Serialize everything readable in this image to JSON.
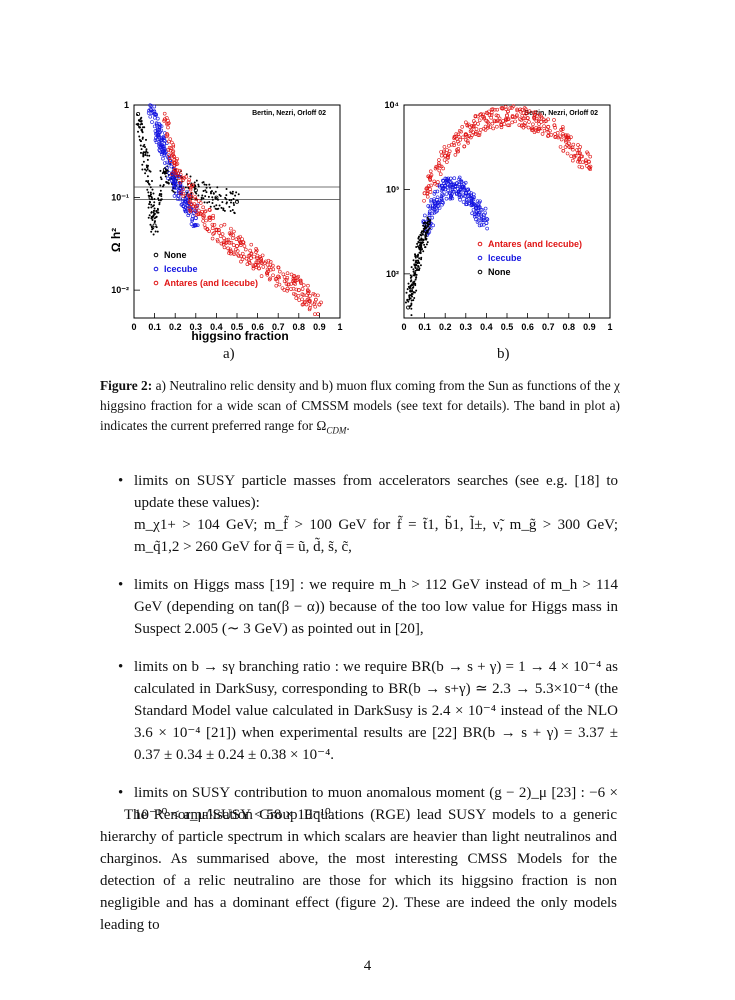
{
  "figure": {
    "plot_a": {
      "credit": "Bertin, Nezri, Orloff 02",
      "ylabel": "Ω  h²",
      "ylabel_sub": "χ",
      "xlabel": "higgsino fraction",
      "x_ticks": [
        "0",
        "0.1",
        "0.2",
        "0.3",
        "0.4",
        "0.5",
        "0.6",
        "0.7",
        "0.8",
        "0.9",
        "1"
      ],
      "y_ticks": [
        "1",
        "10⁻¹",
        "10⁻²"
      ],
      "legend": [
        {
          "label": "None",
          "color": "#000000"
        },
        {
          "label": "Icecube",
          "color": "#1515e0"
        },
        {
          "label": "Antares (and Icecube)",
          "color": "#e01515"
        }
      ],
      "band_label_color": "#444444"
    },
    "plot_b": {
      "credit": "Bertin, Nezri, Orloff 02",
      "x_ticks": [
        "0",
        "0.1",
        "0.2",
        "0.3",
        "0.4",
        "0.5",
        "0.6",
        "0.7",
        "0.8",
        "0.9",
        "1"
      ],
      "y_ticks": [
        "10⁴",
        "10³",
        "10²"
      ],
      "legend": [
        {
          "label": "Antares (and Icecube)",
          "color": "#e01515"
        },
        {
          "label": "Icecube",
          "color": "#1515e0"
        },
        {
          "label": "None",
          "color": "#000000"
        }
      ]
    },
    "sublabel_a": "a)",
    "sublabel_b": "b)"
  },
  "chart_data": [
    {
      "type": "scatter",
      "title": "",
      "xlabel": "higgsino fraction",
      "ylabel": "Ω_χ h²",
      "xlim": [
        0,
        1
      ],
      "ylim": [
        0.005,
        1
      ],
      "yscale": "log",
      "grid": false,
      "legend_position": "bottom-left",
      "band": [
        0.095,
        0.13
      ],
      "series": [
        {
          "name": "None",
          "color": "#000000",
          "x": [
            0.02,
            0.05,
            0.08,
            0.1,
            0.15,
            0.2,
            0.3,
            0.4,
            0.5
          ],
          "y": [
            0.8,
            0.3,
            0.1,
            0.05,
            0.2,
            0.15,
            0.12,
            0.1,
            0.09
          ]
        },
        {
          "name": "Icecube",
          "color": "#1515e0",
          "x": [
            0.08,
            0.12,
            0.15,
            0.2,
            0.25,
            0.3
          ],
          "y": [
            0.9,
            0.5,
            0.3,
            0.15,
            0.09,
            0.06
          ]
        },
        {
          "name": "Antares (and Icecube)",
          "color": "#e01515",
          "x": [
            0.15,
            0.2,
            0.3,
            0.4,
            0.5,
            0.6,
            0.7,
            0.8,
            0.9
          ],
          "y": [
            0.7,
            0.2,
            0.08,
            0.045,
            0.03,
            0.02,
            0.014,
            0.01,
            0.007
          ]
        }
      ]
    },
    {
      "type": "scatter",
      "title": "",
      "xlabel": "",
      "ylabel": "",
      "xlim": [
        0,
        1
      ],
      "ylim": [
        30,
        10000
      ],
      "yscale": "log",
      "grid": false,
      "legend_position": "bottom-right",
      "series": [
        {
          "name": "Antares (and Icecube)",
          "color": "#e01515",
          "x": [
            0.1,
            0.2,
            0.3,
            0.4,
            0.5,
            0.6,
            0.7,
            0.8,
            0.9
          ],
          "y": [
            900,
            2500,
            4500,
            6500,
            7500,
            7000,
            5500,
            3500,
            1800
          ]
        },
        {
          "name": "Icecube",
          "color": "#1515e0",
          "x": [
            0.1,
            0.15,
            0.2,
            0.25,
            0.3,
            0.35,
            0.4
          ],
          "y": [
            300,
            700,
            1000,
            1100,
            900,
            600,
            400
          ]
        },
        {
          "name": "None",
          "color": "#000000",
          "x": [
            0.02,
            0.04,
            0.06,
            0.08,
            0.1,
            0.12
          ],
          "y": [
            40,
            70,
            120,
            200,
            300,
            400
          ]
        }
      ]
    }
  ],
  "caption": {
    "label": "Figure 2:",
    "text": " a) Neutralino relic density and b) muon flux coming from the Sun as functions of the χ higgsino fraction for a wide scan of CMSSM models (see text for details). The band in plot a) indicates the current preferred range for Ω",
    "sub": "CDM",
    "end": "."
  },
  "bullets": [
    {
      "line1": "limits on SUSY particle masses from accelerators searches (see e.g.  [18] to update these values):",
      "line2": "m_χ1+ > 104 GeV; m_f̃ > 100 GeV for f̃ = t̃1, b̃1, l̃±, ν̃, m_g̃ > 300 GeV; m_q̃1,2 > 260 GeV for q̃ = ũ, d̃, s̃, c̃,"
    },
    {
      "line1": "limits on Higgs mass [19] :  we require m_h > 112 GeV instead of m_h > 114 GeV (depending on tan(β − α)) because of the too low value for Higgs mass in Suspect 2.005 (∼ 3 GeV) as pointed out in [20],"
    },
    {
      "line1": "limits on b → sγ branching ratio : we require BR(b → s + γ) = 1 → 4 × 10⁻⁴ as calculated in DarkSusy, corresponding to BR(b → s+γ) ≃ 2.3 → 5.3×10⁻⁴ (the Standard Model value calculated in DarkSusy is 2.4 × 10⁻⁴ instead of the NLO 3.6 × 10⁻⁴ [21]) when experimental results are [22] BR(b → s + γ) = 3.37 ± 0.37 ± 0.34 ± 0.24 ± 0.38 × 10⁻⁴."
    },
    {
      "line1": "limits on SUSY contribution to muon anomalous moment (g − 2)_μ [23] : −6 × 10⁻¹⁰ < a_μ^SUSY < 58 × 10⁻¹⁰."
    }
  ],
  "paragraph": "The Renormalisation Group Equations (RGE) lead SUSY models to a generic hierarchy of particle spectrum in which scalars are heavier than light neutralinos and charginos. As summarised above, the most interesting CMSS Models for the detection of a relic neutralino are those for which its higgsino fraction is non negligible and has a dominant effect (figure 2). These are indeed the only models leading to",
  "page_number": "4"
}
